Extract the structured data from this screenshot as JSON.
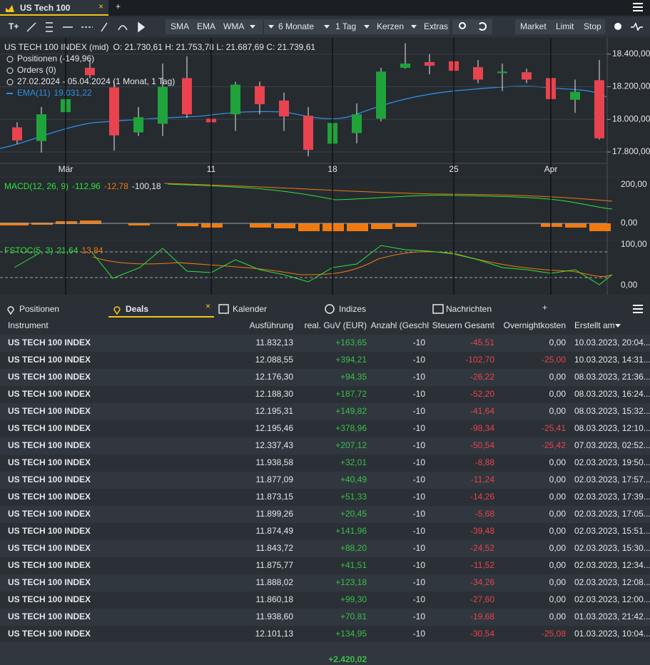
{
  "window": {
    "tab": "US Tech 100",
    "close": "×",
    "add": "+"
  },
  "toolbar": {
    "tools": [
      "T+"
    ],
    "indicators": [
      "SMA",
      "EMA",
      "WMA"
    ],
    "range": "6 Monate",
    "interval": "1 Tag",
    "style": "Kerzen",
    "extras": "Extras",
    "orders": [
      "Market",
      "Limit",
      "Stop"
    ]
  },
  "legend": {
    "symbol": "US TECH 100 INDEX (mid)",
    "ohlc": "O: 21.730,61  H: 21.753,78  L: 21.687,69  C: 21.739,61",
    "positions": "Positionen (-149,96)",
    "orders": "Orders (0)",
    "period": "27.02.2024 - 05.04.2024   (1 Monat, 1 Tag)",
    "ema": "EMA(11)",
    "ema_value": "19.031,22"
  },
  "chart_data": {
    "type": "candlestick",
    "categories": [
      null,
      null,
      "Mär",
      null,
      null,
      null,
      null,
      null,
      "11",
      null,
      null,
      null,
      null,
      "18",
      null,
      null,
      null,
      null,
      "25",
      null,
      null,
      null,
      "Apr",
      null,
      null
    ],
    "open": [
      17951,
      17867,
      18044,
      18316,
      18196,
      17920,
      17973,
      18253,
      18004,
      18031,
      18204,
      18116,
      18022,
      17851,
      17916,
      18004,
      18316,
      18351,
      18356,
      18320,
      18284,
      18289,
      18253,
      18120,
      18240
    ],
    "high": [
      17982,
      18076,
      18187,
      18364,
      18231,
      18076,
      18342,
      18387,
      18053,
      18231,
      18231,
      18164,
      18076,
      18133,
      18098,
      18316,
      18467,
      18400,
      18387,
      18364,
      18342,
      18311,
      18298,
      18244,
      18364
    ],
    "low": [
      17849,
      17796,
      18031,
      18253,
      17809,
      17898,
      17898,
      18009,
      17942,
      17929,
      18031,
      17929,
      17773,
      17818,
      17853,
      17987,
      18311,
      18276,
      18187,
      18222,
      18173,
      18222,
      18004,
      18040,
      17876
    ],
    "close": [
      17871,
      18031,
      18124,
      18271,
      17902,
      18013,
      18200,
      18031,
      17982,
      18213,
      18093,
      18018,
      17813,
      17978,
      18031,
      18293,
      18342,
      18329,
      18298,
      18244,
      18293,
      18244,
      18124,
      18169,
      17884
    ],
    "up_color": "#1fa33b",
    "down_color": "#e8434f",
    "ylim": [
      17730,
      18500
    ],
    "yticks": [
      {
        "value": 17800,
        "label": "17.800,00"
      },
      {
        "value": 18000,
        "label": "18.000,00"
      },
      {
        "value": 18200,
        "label": "18.200,00"
      },
      {
        "value": 18400,
        "label": "18.400,00"
      }
    ]
  },
  "macd": {
    "name": "MACD(12, 26, 9)",
    "values": [
      "-112,96",
      "-12,78",
      "-100,18"
    ],
    "axis": [
      "200,00",
      "0,00"
    ]
  },
  "fstoc": {
    "name": "FSTOC(5, 3)",
    "values": [
      "21,64",
      "13,84"
    ],
    "axis": [
      "100,00",
      "0,00"
    ]
  },
  "tabs": [
    "Positionen",
    "Deals",
    "Kalender",
    "Indizes",
    "Nachrichten",
    "+"
  ],
  "table": {
    "columns": [
      "Instrument",
      "Ausführung",
      "real. GuV (EUR)",
      "Anzahl (Geschl",
      "Steuern Gesamt",
      "Overnightkosten",
      "Erstellt am"
    ],
    "rows": [
      [
        "US TECH 100 INDEX",
        "11.832,13",
        "+163,65",
        "-10",
        "-45,51",
        "0,00",
        "10.03.2023, 20:04..."
      ],
      [
        "US TECH 100 INDEX",
        "12.088,55",
        "+394,21",
        "-10",
        "-102,70",
        "-25,00",
        "10.03.2023, 14:31..."
      ],
      [
        "US TECH 100 INDEX",
        "12.176,30",
        "+94,35",
        "-10",
        "-26,22",
        "0,00",
        "08.03.2023, 21:36..."
      ],
      [
        "US TECH 100 INDEX",
        "12.188,30",
        "+187,72",
        "-10",
        "-52,20",
        "0,00",
        "08.03.2023, 16:24..."
      ],
      [
        "US TECH 100 INDEX",
        "12.195,31",
        "+149,82",
        "-10",
        "-41,64",
        "0,00",
        "08.03.2023, 15:32..."
      ],
      [
        "US TECH 100 INDEX",
        "12.195,46",
        "+378,96",
        "-10",
        "-98,34",
        "-25,41",
        "08.03.2023, 12:10..."
      ],
      [
        "US TECH 100 INDEX",
        "12.337,43",
        "+207,12",
        "-10",
        "-50,54",
        "-25,42",
        "07.03.2023, 02:52..."
      ],
      [
        "US TECH 100 INDEX",
        "11.938,58",
        "+32,01",
        "-10",
        "-8,88",
        "0,00",
        "02.03.2023, 19:50..."
      ],
      [
        "US TECH 100 INDEX",
        "11.877,09",
        "+40,49",
        "-10",
        "-11,24",
        "0,00",
        "02.03.2023, 17:57..."
      ],
      [
        "US TECH 100 INDEX",
        "11.873,15",
        "+51,33",
        "-10",
        "-14,26",
        "0,00",
        "02.03.2023, 17:39..."
      ],
      [
        "US TECH 100 INDEX",
        "11.899,26",
        "+20,45",
        "-10",
        "-5,68",
        "0,00",
        "02.03.2023, 17:05..."
      ],
      [
        "US TECH 100 INDEX",
        "11.874,49",
        "+141,96",
        "-10",
        "-39,48",
        "0,00",
        "02.03.2023, 15:51..."
      ],
      [
        "US TECH 100 INDEX",
        "11.843,72",
        "+88,20",
        "-10",
        "-24,52",
        "0,00",
        "02.03.2023, 15:30..."
      ],
      [
        "US TECH 100 INDEX",
        "11.875,77",
        "+41,51",
        "-10",
        "-11,52",
        "0,00",
        "02.03.2023, 12:34..."
      ],
      [
        "US TECH 100 INDEX",
        "11.888,02",
        "+123,18",
        "-10",
        "-34,26",
        "0,00",
        "02.03.2023, 12:08..."
      ],
      [
        "US TECH 100 INDEX",
        "11.860,18",
        "+99,30",
        "-10",
        "-27,60",
        "0,00",
        "02.03.2023, 12:00..."
      ],
      [
        "US TECH 100 INDEX",
        "11.938,60",
        "+70,81",
        "-10",
        "-19,68",
        "0,00",
        "01.03.2023, 21:42..."
      ],
      [
        "US TECH 100 INDEX",
        "12.101,13",
        "+134,95",
        "-10",
        "-30,54",
        "-25,08",
        "01.03.2023, 10:04..."
      ]
    ],
    "total": "+2.420,02"
  }
}
